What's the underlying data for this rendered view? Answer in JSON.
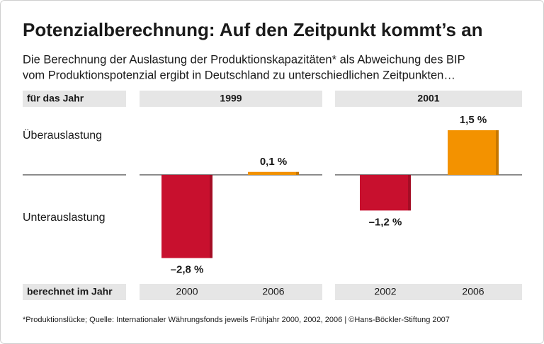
{
  "title": "Potenzialberechnung: Auf den Zeitpunkt kommt’s an",
  "subtitle": [
    "Die Berechnung der Auslastung der Produktionskapazitäten* als Abweichung des BIP",
    "vom Produktionspotenzial ergibt in Deutschland zu unterschiedlichen Zeitpunkten…"
  ],
  "row_labels": {
    "year": "für das Jahr",
    "calculated": "berechnet im Jahr"
  },
  "zones": {
    "over": "Überauslastung",
    "under": "Unterauslastung"
  },
  "footnote": "*Produktionslücke; Quelle: Internationaler Währungsfonds jeweils Frühjahr 2000, 2002, 2006 | ©Hans-Böckler-Stiftung 2007",
  "chart_data": [
    {
      "type": "bar",
      "title": "1999",
      "categories": [
        "2000",
        "2006"
      ],
      "values": [
        -2.8,
        0.1
      ],
      "value_labels": [
        "–2,8 %",
        "0,1 %"
      ],
      "colors": [
        "#c8102e",
        "#f39200"
      ]
    },
    {
      "type": "bar",
      "title": "2001",
      "categories": [
        "2002",
        "2006"
      ],
      "values": [
        -1.2,
        1.5
      ],
      "value_labels": [
        "–1,2 %",
        "1,5 %"
      ],
      "colors": [
        "#c8102e",
        "#f39200"
      ]
    }
  ]
}
